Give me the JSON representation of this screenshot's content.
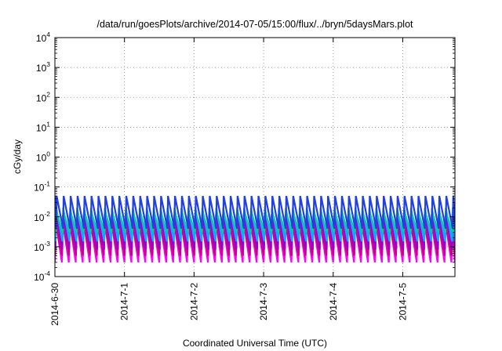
{
  "chart_data": {
    "type": "area",
    "title": "/data/run/goesPlots/archive/2014-07-05/15:00/flux/../bryn/5daysMars.plot",
    "xlabel": "Coordinated Universal Time (UTC)",
    "ylabel": "cGy/day",
    "yscale": "log",
    "ylim": [
      0.0001,
      10000
    ],
    "y_ticks": [
      {
        "value": 0.0001,
        "base": "10",
        "exp": "-4"
      },
      {
        "value": 0.001,
        "base": "10",
        "exp": "-3"
      },
      {
        "value": 0.01,
        "base": "10",
        "exp": "-2"
      },
      {
        "value": 0.1,
        "base": "10",
        "exp": "-1"
      },
      {
        "value": 1,
        "base": "10",
        "exp": "0"
      },
      {
        "value": 10,
        "base": "10",
        "exp": "1"
      },
      {
        "value": 100,
        "base": "10",
        "exp": "2"
      },
      {
        "value": 1000,
        "base": "10",
        "exp": "3"
      },
      {
        "value": 10000,
        "base": "10",
        "exp": "4"
      }
    ],
    "xlim": [
      "2014-06-30T00:00",
      "2014-07-05T18:00"
    ],
    "x_ticks": [
      "2014-6-30",
      "2014-7-1",
      "2014-7-2",
      "2014-7-3",
      "2014-7-4",
      "2014-7-5"
    ],
    "x_tick_dates": [
      "2014-06-30",
      "2014-07-01",
      "2014-07-02",
      "2014-07-03",
      "2014-07-04",
      "2014-07-05"
    ],
    "grid": true,
    "cycles_per_day": 10,
    "series": [
      {
        "color": "#ff00ff",
        "high": 0.008,
        "low": 0.0003
      },
      {
        "color": "#cc0088",
        "high": 0.006,
        "low": 0.0005
      },
      {
        "color": "#9900cc",
        "high": 0.012,
        "low": 0.0008
      },
      {
        "color": "#00b0ff",
        "high": 0.02,
        "low": 0.0015
      },
      {
        "color": "#00d0a0",
        "high": 0.015,
        "low": 0.003
      },
      {
        "color": "#2040e0",
        "high": 0.05,
        "low": 0.004
      }
    ]
  }
}
